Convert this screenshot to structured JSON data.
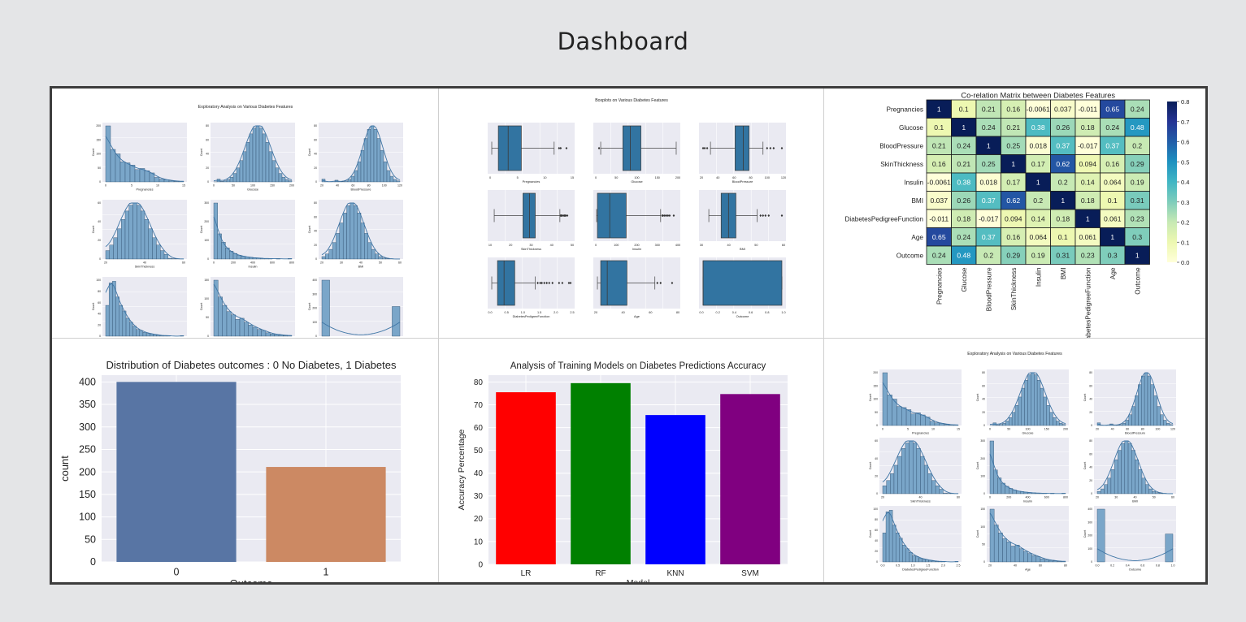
{
  "page": {
    "title": "Dashboard"
  },
  "palette": {
    "background": "#e4e5e7",
    "hist_fill": "#7aa6c9",
    "hist_line": "#3f76a6",
    "box_fill": "#3274a1",
    "plot_bg": "#eaeaf2",
    "outcome_bar_0": "#5875a4",
    "outcome_bar_1": "#cc8963",
    "model_colors": [
      "#ff0000",
      "#008000",
      "#0000ff",
      "#800080"
    ]
  },
  "panels": {
    "histograms": {
      "title": "Exploratory Analysis on Various Diabetes Features",
      "y_label": "Count",
      "features": [
        {
          "name": "Pregnancies",
          "ticks": [
            "0",
            "5",
            "10",
            "15"
          ],
          "yticks": [
            "0",
            "50",
            "100",
            "150",
            "200"
          ],
          "shape": "pregnancies"
        },
        {
          "name": "Glucose",
          "ticks": [
            "0",
            "50",
            "100",
            "150",
            "200"
          ],
          "yticks": [
            "0",
            "20",
            "40",
            "60",
            "80"
          ],
          "shape": "glucose"
        },
        {
          "name": "BloodPressure",
          "ticks": [
            "20",
            "40",
            "60",
            "80",
            "100",
            "120"
          ],
          "yticks": [
            "0",
            "20",
            "40",
            "60",
            "80"
          ],
          "shape": "bp"
        },
        {
          "name": "SkinThickness",
          "ticks": [
            "20",
            "40",
            "60"
          ],
          "yticks": [
            "0",
            "20",
            "40",
            "60"
          ],
          "shape": "skin"
        },
        {
          "name": "Insulin",
          "ticks": [
            "0",
            "200",
            "400",
            "600",
            "800"
          ],
          "yticks": [
            "0",
            "100",
            "200",
            "300"
          ],
          "shape": "insulin"
        },
        {
          "name": "BMI",
          "ticks": [
            "20",
            "30",
            "40",
            "50",
            "60"
          ],
          "yticks": [
            "0",
            "20",
            "40",
            "60",
            "80"
          ],
          "shape": "bmi"
        },
        {
          "name": "DiabetesPedigreeFunction",
          "ticks": [
            "0.0",
            "0.5",
            "1.0",
            "1.5",
            "2.0",
            "2.5"
          ],
          "yticks": [
            "0",
            "20",
            "40",
            "60",
            "80",
            "100"
          ],
          "shape": "dpf"
        },
        {
          "name": "Age",
          "ticks": [
            "20",
            "40",
            "60",
            "80"
          ],
          "yticks": [
            "0",
            "50",
            "100",
            "150"
          ],
          "shape": "age"
        },
        {
          "name": "Outcome",
          "ticks": [
            "0.0",
            "0.2",
            "0.4",
            "0.6",
            "0.8",
            "1.0"
          ],
          "yticks": [
            "0",
            "100",
            "200",
            "300",
            "400"
          ],
          "shape": "outcome"
        }
      ]
    },
    "boxplots": {
      "title": "Boxplots on Various Diabetes Features",
      "features": [
        {
          "name": "Pregnancies",
          "ticks": [
            "0",
            "5",
            "10",
            "15"
          ]
        },
        {
          "name": "Glucose",
          "ticks": [
            "0",
            "50",
            "100",
            "150",
            "200"
          ]
        },
        {
          "name": "BloodPressure",
          "ticks": [
            "20",
            "40",
            "60",
            "80",
            "100",
            "120"
          ]
        },
        {
          "name": "SkinThickness",
          "ticks": [
            "10",
            "20",
            "30",
            "40",
            "50"
          ]
        },
        {
          "name": "Insulin",
          "ticks": [
            "0",
            "100",
            "200",
            "300",
            "400"
          ]
        },
        {
          "name": "BMI",
          "ticks": [
            "30",
            "40",
            "50",
            "60"
          ]
        },
        {
          "name": "DiabetesPedigreeFunction",
          "ticks": [
            "0.0",
            "0.5",
            "1.0",
            "1.5",
            "2.0",
            "2.5"
          ]
        },
        {
          "name": "Age",
          "ticks": [
            "20",
            "40",
            "60",
            "80"
          ]
        },
        {
          "name": "Outcome",
          "ticks": [
            "0.0",
            "0.2",
            "0.4",
            "0.6",
            "0.8",
            "1.0"
          ]
        }
      ]
    },
    "heatmap": {
      "title": "Co-relation Matrix between Diabetes Features",
      "colorbar_ticks": [
        "0.8",
        "0.7",
        "0.6",
        "0.5",
        "0.4",
        "0.3",
        "0.2",
        "0.1",
        "0.0"
      ]
    },
    "outcome_chart": {
      "title": "Distribution of Diabetes outcomes : 0 No Diabetes, 1 Diabetes"
    },
    "models_chart": {
      "title": "Analysis of Training Models on Diabetes Predictions Accuracy"
    },
    "histograms_repeat": {
      "title": "Exploratory Analysis on Various Diabetes Features"
    }
  },
  "chart_data": [
    {
      "type": "heatmap",
      "title": "Co-relation Matrix between Diabetes Features",
      "labels": [
        "Pregnancies",
        "Glucose",
        "BloodPressure",
        "SkinThickness",
        "Insulin",
        "BMI",
        "DiabetesPedigreeFunction",
        "Age",
        "Outcome"
      ],
      "cells": [
        [
          "1",
          "0.1",
          "0.21",
          "0.16",
          "-0.0061",
          "0.037",
          "-0.011",
          "0.65",
          "0.24"
        ],
        [
          "0.1",
          "1",
          "0.24",
          "0.21",
          "0.38",
          "0.26",
          "0.18",
          "0.24",
          "0.48"
        ],
        [
          "0.21",
          "0.24",
          "1",
          "0.25",
          "0.018",
          "0.37",
          "-0.017",
          "0.37",
          "0.2"
        ],
        [
          "0.16",
          "0.21",
          "0.25",
          "1",
          "0.17",
          "0.62",
          "0.094",
          "0.16",
          "0.29"
        ],
        [
          "-0.0061",
          "0.38",
          "0.018",
          "0.17",
          "1",
          "0.2",
          "0.14",
          "0.064",
          "0.19"
        ],
        [
          "0.037",
          "0.26",
          "0.37",
          "0.62",
          "0.2",
          "1",
          "0.18",
          "0.1",
          "0.31"
        ],
        [
          "-0.011",
          "0.18",
          "-0.017",
          "0.094",
          "0.14",
          "0.18",
          "1",
          "0.061",
          "0.23"
        ],
        [
          "0.65",
          "0.24",
          "0.37",
          "0.16",
          "0.064",
          "0.1",
          "0.061",
          "1",
          "0.3"
        ],
        [
          "0.24",
          "0.48",
          "0.2",
          "0.29",
          "0.19",
          "0.31",
          "0.23",
          "0.3",
          "1"
        ]
      ],
      "colorbar_range": [
        0.0,
        0.8
      ]
    },
    {
      "type": "bar",
      "title": "Distribution of Diabetes outcomes : 0 No Diabetes, 1 Diabetes",
      "categories": [
        "0",
        "1"
      ],
      "values": [
        400,
        211
      ],
      "xlabel": "Outcome",
      "ylabel": "count",
      "yticks": [
        "0",
        "50",
        "100",
        "150",
        "200",
        "250",
        "300",
        "350",
        "400"
      ],
      "ylim": [
        0,
        415
      ]
    },
    {
      "type": "bar",
      "title": "Analysis of Training Models on Diabetes Predictions Accuracy",
      "categories": [
        "LR",
        "RF",
        "KNN",
        "SVM"
      ],
      "values": [
        75.5,
        79.5,
        65.5,
        74.7
      ],
      "xlabel": "Model",
      "ylabel": "Accuracy Percentage",
      "yticks": [
        "0",
        "10",
        "20",
        "30",
        "40",
        "50",
        "60",
        "70",
        "80"
      ],
      "ylim": [
        0,
        83
      ]
    }
  ]
}
